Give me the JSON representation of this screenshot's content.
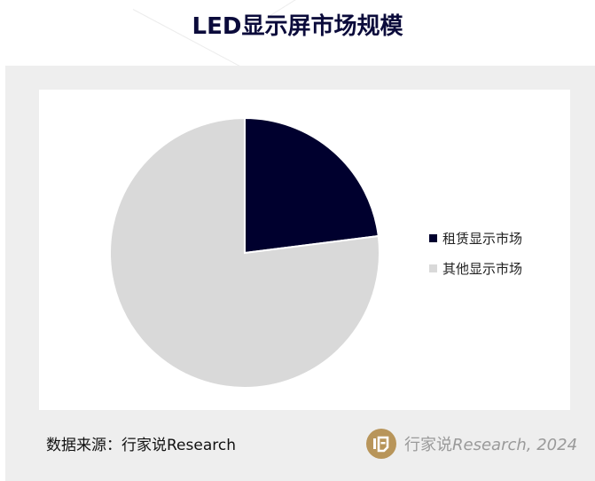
{
  "chart_data": {
    "type": "pie",
    "title": "LED显示屏市场规模",
    "categories": [
      "租赁显示市场",
      "其他显示市场"
    ],
    "values": [
      23,
      77
    ],
    "colors": [
      "#00002e",
      "#d9d9d9"
    ],
    "start_angle_deg": 0,
    "direction": "clockwise",
    "legend_position": "right"
  },
  "footer": {
    "source": "数据来源：行家说Research",
    "brand_cn": "行家说",
    "brand_en": "Research, 2024",
    "logo_icon": "brand-logo-icon",
    "logo_color": "#b8955a"
  }
}
